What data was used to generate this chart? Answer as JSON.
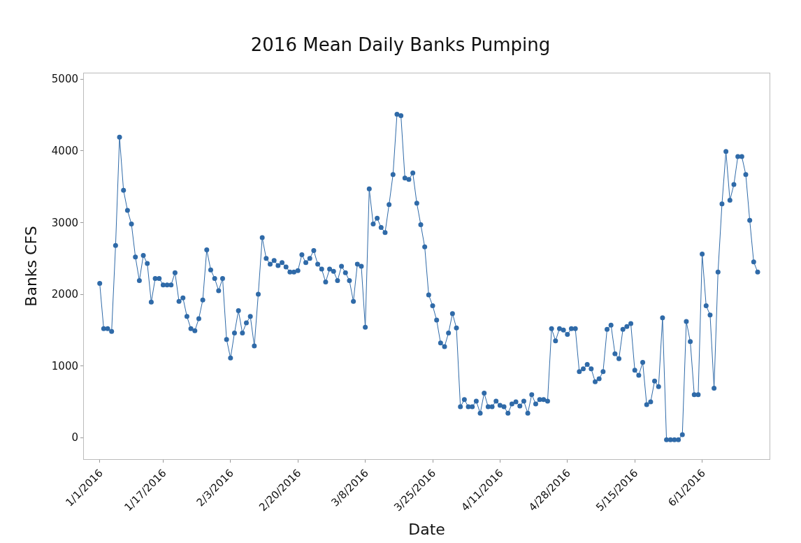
{
  "chart_data": {
    "type": "line",
    "title": "2016 Mean Daily Banks Pumping",
    "xlabel": "Date",
    "ylabel": "Banks CFS",
    "x": [
      "2016-01-01",
      "2016-01-02",
      "2016-01-03",
      "2016-01-04",
      "2016-01-05",
      "2016-01-06",
      "2016-01-07",
      "2016-01-08",
      "2016-01-09",
      "2016-01-10",
      "2016-01-11",
      "2016-01-12",
      "2016-01-13",
      "2016-01-14",
      "2016-01-15",
      "2016-01-16",
      "2016-01-17",
      "2016-01-18",
      "2016-01-19",
      "2016-01-20",
      "2016-01-21",
      "2016-01-22",
      "2016-01-23",
      "2016-01-24",
      "2016-01-25",
      "2016-01-26",
      "2016-01-27",
      "2016-01-28",
      "2016-01-29",
      "2016-01-30",
      "2016-01-31",
      "2016-02-01",
      "2016-02-02",
      "2016-02-03",
      "2016-02-04",
      "2016-02-05",
      "2016-02-06",
      "2016-02-07",
      "2016-02-08",
      "2016-02-09",
      "2016-02-10",
      "2016-02-11",
      "2016-02-12",
      "2016-02-13",
      "2016-02-14",
      "2016-02-15",
      "2016-02-16",
      "2016-02-17",
      "2016-02-18",
      "2016-02-19",
      "2016-02-20",
      "2016-02-21",
      "2016-02-22",
      "2016-02-23",
      "2016-02-24",
      "2016-02-25",
      "2016-02-26",
      "2016-02-27",
      "2016-02-28",
      "2016-02-29",
      "2016-03-01",
      "2016-03-02",
      "2016-03-03",
      "2016-03-04",
      "2016-03-05",
      "2016-03-06",
      "2016-03-07",
      "2016-03-08",
      "2016-03-09",
      "2016-03-10",
      "2016-03-11",
      "2016-03-12",
      "2016-03-13",
      "2016-03-14",
      "2016-03-15",
      "2016-03-16",
      "2016-03-17",
      "2016-03-18",
      "2016-03-19",
      "2016-03-20",
      "2016-03-21",
      "2016-03-22",
      "2016-03-23",
      "2016-03-24",
      "2016-03-25",
      "2016-03-26",
      "2016-03-27",
      "2016-03-28",
      "2016-03-29",
      "2016-03-30",
      "2016-03-31",
      "2016-04-01",
      "2016-04-02",
      "2016-04-03",
      "2016-04-04",
      "2016-04-05",
      "2016-04-06",
      "2016-04-07",
      "2016-04-08",
      "2016-04-09",
      "2016-04-10",
      "2016-04-11",
      "2016-04-12",
      "2016-04-13",
      "2016-04-14",
      "2016-04-15",
      "2016-04-16",
      "2016-04-17",
      "2016-04-18",
      "2016-04-19",
      "2016-04-20",
      "2016-04-21",
      "2016-04-22",
      "2016-04-23",
      "2016-04-24",
      "2016-04-25",
      "2016-04-26",
      "2016-04-27",
      "2016-04-28",
      "2016-04-29",
      "2016-04-30",
      "2016-05-01",
      "2016-05-02",
      "2016-05-03",
      "2016-05-04",
      "2016-05-05",
      "2016-05-06",
      "2016-05-07",
      "2016-05-08",
      "2016-05-09",
      "2016-05-10",
      "2016-05-11",
      "2016-05-12",
      "2016-05-13",
      "2016-05-14",
      "2016-05-15",
      "2016-05-16",
      "2016-05-17",
      "2016-05-18",
      "2016-05-19",
      "2016-05-20",
      "2016-05-21",
      "2016-05-22",
      "2016-05-23",
      "2016-05-24",
      "2016-05-25",
      "2016-05-26",
      "2016-05-27",
      "2016-05-28",
      "2016-05-29",
      "2016-05-30",
      "2016-05-31",
      "2016-06-01",
      "2016-06-02",
      "2016-06-03",
      "2016-06-04",
      "2016-06-05",
      "2016-06-06",
      "2016-06-07",
      "2016-06-08",
      "2016-06-09",
      "2016-06-10",
      "2016-06-11",
      "2016-06-12",
      "2016-06-13",
      "2016-06-14",
      "2016-06-15"
    ],
    "series": [
      {
        "color": "#2f6aa8",
        "values": [
          2150,
          1520,
          1520,
          1480,
          2680,
          4190,
          3450,
          3170,
          2980,
          2520,
          2190,
          2540,
          2430,
          1890,
          2220,
          2220,
          2130,
          2130,
          2130,
          2300,
          1900,
          1950,
          1690,
          1520,
          1490,
          1660,
          1920,
          2620,
          2340,
          2220,
          2050,
          2220,
          1370,
          1110,
          1460,
          1770,
          1460,
          1600,
          1690,
          1280,
          2000,
          2790,
          2500,
          2420,
          2470,
          2400,
          2440,
          2380,
          2310,
          2310,
          2330,
          2550,
          2440,
          2500,
          2610,
          2420,
          2350,
          2170,
          2350,
          2320,
          2190,
          2390,
          2300,
          2190,
          1900,
          2420,
          2390,
          1540,
          3470,
          2980,
          3060,
          2930,
          2860,
          3250,
          3670,
          4510,
          4490,
          3620,
          3600,
          3690,
          3270,
          2970,
          2660,
          1990,
          1840,
          1640,
          1320,
          1270,
          1460,
          1730,
          1530,
          430,
          530,
          430,
          430,
          510,
          340,
          620,
          430,
          430,
          510,
          450,
          430,
          340,
          470,
          500,
          440,
          510,
          340,
          600,
          470,
          530,
          530,
          510,
          1520,
          1350,
          1520,
          1500,
          1440,
          1520,
          1520,
          920,
          960,
          1020,
          960,
          780,
          820,
          920,
          1510,
          1570,
          1170,
          1100,
          1510,
          1550,
          1590,
          940,
          870,
          1050,
          460,
          500,
          790,
          710,
          1670,
          -30,
          -30,
          -30,
          -30,
          40,
          1620,
          1340,
          600,
          600,
          2560,
          1840,
          1710,
          690,
          2310,
          3260,
          3990,
          3310,
          3530,
          3920,
          3920,
          3670,
          3030,
          2450,
          2310
        ]
      }
    ],
    "xlim": [
      "2015-12-28",
      "2016-06-18"
    ],
    "xticks": [
      {
        "value": "2016-01-01",
        "label": "1/1/2016"
      },
      {
        "value": "2016-01-17",
        "label": "1/17/2016"
      },
      {
        "value": "2016-02-03",
        "label": "2/3/2016"
      },
      {
        "value": "2016-02-20",
        "label": "2/20/2016"
      },
      {
        "value": "2016-03-08",
        "label": "3/8/2016"
      },
      {
        "value": "2016-03-25",
        "label": "3/25/2016"
      },
      {
        "value": "2016-04-11",
        "label": "4/11/2016"
      },
      {
        "value": "2016-04-28",
        "label": "4/28/2016"
      },
      {
        "value": "2016-05-15",
        "label": "5/15/2016"
      },
      {
        "value": "2016-06-01",
        "label": "6/1/2016"
      }
    ],
    "ylim": [
      -300,
      5080
    ],
    "yticks": [
      0,
      1000,
      2000,
      3000,
      4000,
      5000
    ],
    "marker": "circle",
    "line_style": "solid"
  }
}
